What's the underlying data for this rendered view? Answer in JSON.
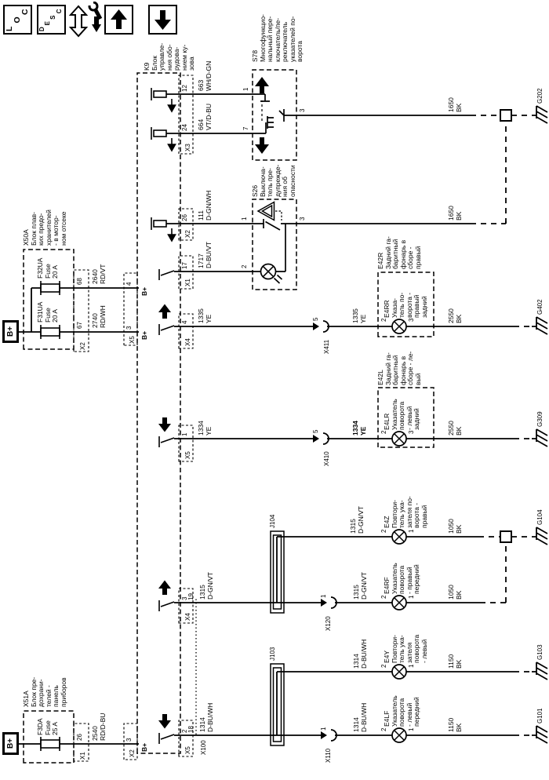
{
  "colors": {
    "line": "#000000",
    "background": "#ffffff"
  },
  "toolbar": {
    "loc_button": "LOC",
    "desc_button": "DESC"
  },
  "power": {
    "bplus": "B+"
  },
  "components": {
    "k9": {
      "id": "K9",
      "name": "Блок\nуправле-\nния обо-\nрудова-\nнием ку-\nзова",
      "bplus": "B+",
      "x3": {
        "name": "X3",
        "pin12": "12",
        "pin24": "24"
      },
      "x2b": {
        "name": "X2",
        "pin26": "26"
      },
      "x1": {
        "name": "X1",
        "pin17": "17"
      },
      "x4e": {
        "name": "X4",
        "pin4": "4"
      },
      "x5f": {
        "name": "X5",
        "pin1": "1"
      },
      "x4g": {
        "name": "X4",
        "pin3": "3"
      },
      "x5h": {
        "name": "X5",
        "pin2": "2"
      },
      "x5top": {
        "name": "X5",
        "pin3": "3",
        "pin4": "4"
      },
      "x2top": {
        "name": "X2",
        "pin3": "3"
      }
    },
    "x50a": {
      "id": "X50A",
      "name": "Блок плав-\nких предо-\nхранителей\n- в мотор-\nном отсеке",
      "x2": {
        "name": "X2",
        "pin67": "67",
        "pin68": "68"
      },
      "f32ua": {
        "id": "F32UA",
        "type": "Fuse",
        "rating": "20 A"
      },
      "f31ua": {
        "id": "F31UA",
        "type": "Fuse",
        "rating": "20 A"
      }
    },
    "x51a": {
      "id": "X51A",
      "name": "Блок пре-\nдохрани-\nтелей -\nпанель\nприборов",
      "x1": {
        "name": "X1",
        "pin26": "26"
      },
      "f3da": {
        "id": "F3DA",
        "type": "Fuse",
        "rating": "25 A"
      }
    },
    "s78": {
      "id": "S78",
      "name": "Многофункцио-\nнальный пере-\nключатель/пе-\nреключатель\nуказателей по-\nворота",
      "pin1": "1",
      "pin7": "7",
      "pin3": "3"
    },
    "s26": {
      "id": "S26",
      "name": "Выключа-\nтель пре-\nдупрежде-\nния об\nопасности",
      "pin1": "1",
      "pin2": "2",
      "pin3": "3"
    },
    "e42r": {
      "id": "E42R",
      "name": "Задний га-\nбаритный\nфонарь в\nсборе -\nправый"
    },
    "e4rr": {
      "id": "E4RR",
      "name": "Указа-\nтель по-\nворота -\nправый\nзадний",
      "pin2": "2",
      "pin3": "3"
    },
    "e42l": {
      "id": "E42L",
      "name": "Задний га-\nбаритный\nфонарь в\nсборе - ле-\nвый"
    },
    "e4lr": {
      "id": "E4LR",
      "name": "Указатель\nповорота\n- левый\nзадний",
      "pin2": "2",
      "pin3": "3"
    },
    "e4z": {
      "id": "E4Z",
      "name": "Повтори-\nтель ука-\nзателя по-\nворота -\nправый",
      "pin2": "2",
      "pin1": "1"
    },
    "e4rf": {
      "id": "E4RF",
      "name": "Указатель\nповорота\n- правый\nпередний",
      "pin2": "2",
      "pin1": "1"
    },
    "e4y": {
      "id": "E4Y",
      "name": "Повтори-\nтель ука-\nзателя\nповорота\n- левый",
      "pin2": "2",
      "pin1": "1"
    },
    "e4lf": {
      "id": "E4LF",
      "name": "Указатель\nповорота\n- левый\nпередний",
      "pin2": "2",
      "pin1": "1"
    },
    "j104": "J104",
    "j103": "J103"
  },
  "wires": {
    "w663": {
      "num": "663",
      "color": "WH/D-GN"
    },
    "w664": {
      "num": "664",
      "color": "VT/D-BU"
    },
    "w111": {
      "num": "111",
      "color": "D-GN/WH"
    },
    "w1717": {
      "num": "1717",
      "color": "D-BU/VT"
    },
    "w1335": {
      "num": "1335",
      "color": "YE"
    },
    "w1334": {
      "num": "1334",
      "color": "YE"
    },
    "w1315": {
      "num": "1315",
      "color": "D-GN/VT"
    },
    "w1314": {
      "num": "1314",
      "color": "D-BU/WH"
    },
    "w2640": {
      "num": "2640",
      "color": "RD/VT"
    },
    "w2740": {
      "num": "2740",
      "color": "RD/WH"
    },
    "w2540": {
      "num": "2540",
      "color": "RD/D-BU"
    },
    "w1650": {
      "num": "1650",
      "color": "BK"
    },
    "w2550": {
      "num": "2550",
      "color": "BK"
    },
    "w1050": {
      "num": "1050",
      "color": "BK"
    },
    "w1150": {
      "num": "1150",
      "color": "BK"
    }
  },
  "inline_connectors": {
    "x411": {
      "id": "X411",
      "pin": "5"
    },
    "x410": {
      "id": "X410",
      "pin": "5"
    },
    "x120": {
      "id": "X120",
      "pin": "1"
    },
    "x110": {
      "id": "X110",
      "pin": "1"
    },
    "x100": {
      "id": "X100",
      "pin19": "19",
      "pin18": "18"
    }
  },
  "grounds": {
    "g202": "G202",
    "g402": "G402",
    "g309": "G309",
    "g104": "G104",
    "g103": "G103",
    "g101": "G101"
  }
}
